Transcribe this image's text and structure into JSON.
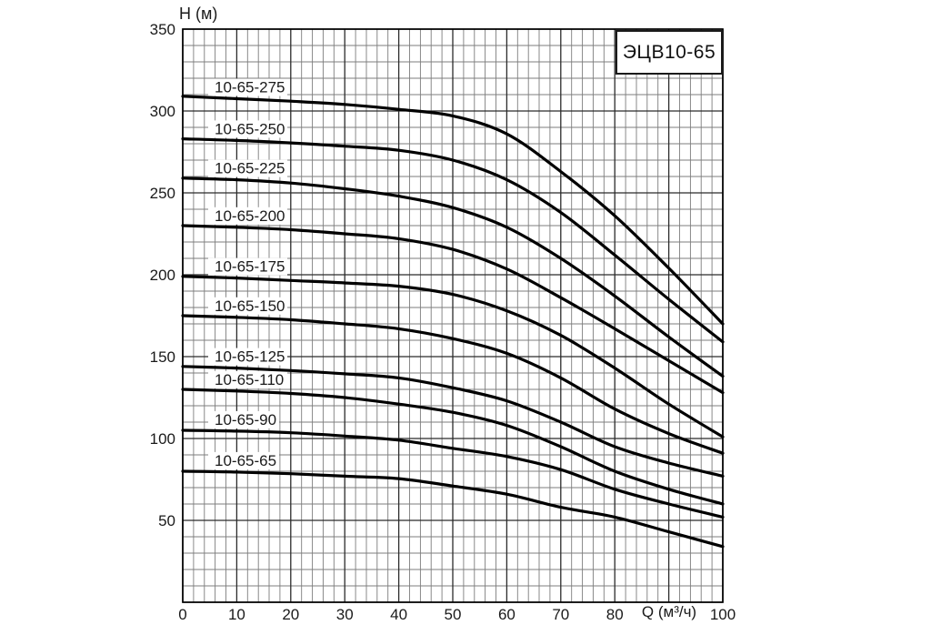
{
  "title": "ЭЦВ10-65",
  "y_axis": {
    "label": "H (м)",
    "ticks": [
      350,
      300,
      250,
      200,
      150,
      100,
      50
    ]
  },
  "x_axis": {
    "label": "Q (м³/ч)",
    "ticks": [
      0,
      10,
      20,
      30,
      40,
      50,
      60,
      70,
      80,
      100
    ],
    "label_position_q": 90
  },
  "chart_data": {
    "type": "line",
    "title": "ЭЦВ10-65",
    "xlabel": "Q (м³/ч)",
    "ylabel": "H (м)",
    "xlim": [
      0,
      100
    ],
    "ylim": [
      0,
      350
    ],
    "grid": {
      "on": true,
      "x_minor_step": 2,
      "x_major_step": 10,
      "y_minor_step": 10,
      "y_major_step": 50,
      "legend": "none"
    },
    "x": [
      0,
      10,
      20,
      30,
      40,
      50,
      60,
      70,
      80,
      90,
      100
    ],
    "series": [
      {
        "name": "10-65-275",
        "values": [
          309,
          307.5,
          306,
          304,
          301,
          297,
          286,
          263,
          236,
          204,
          170
        ]
      },
      {
        "name": "10-65-250",
        "values": [
          283,
          282,
          280.5,
          278.5,
          276,
          270,
          258,
          238,
          212,
          185,
          159
        ]
      },
      {
        "name": "10-65-225",
        "values": [
          259,
          258,
          256,
          252.5,
          248,
          241,
          229,
          210,
          187,
          162,
          138
        ]
      },
      {
        "name": "10-65-200",
        "values": [
          230,
          229,
          227.5,
          225,
          222,
          215.5,
          203.5,
          186,
          167,
          147.5,
          128
        ]
      },
      {
        "name": "10-65-175",
        "values": [
          199,
          198,
          196.5,
          195,
          193,
          188,
          178,
          163,
          143,
          121,
          101
        ]
      },
      {
        "name": "10-65-150",
        "values": [
          175,
          174,
          172.5,
          170,
          167,
          161,
          152,
          137,
          118,
          103,
          91
        ]
      },
      {
        "name": "10-65-125",
        "values": [
          144,
          143,
          141.5,
          139.5,
          137,
          131,
          123,
          110,
          95,
          85,
          77
        ]
      },
      {
        "name": "10-65-110",
        "values": [
          130,
          129,
          127.5,
          125,
          121,
          116,
          108,
          95,
          80,
          69,
          60
        ]
      },
      {
        "name": "10-65-90",
        "values": [
          105,
          104.5,
          103.5,
          101.5,
          99,
          94,
          89,
          81,
          69,
          60,
          52
        ]
      },
      {
        "name": "10-65-65",
        "values": [
          80,
          79.5,
          78.5,
          77,
          75.5,
          71,
          66,
          58,
          52,
          43,
          34
        ]
      }
    ],
    "colors": {
      "background": "#ffffff",
      "curve": "#000000",
      "grid_minor": "#7d7d7d",
      "grid_major": "#2b2b2b",
      "border": "#000000",
      "text": "#1a1a1a"
    }
  }
}
